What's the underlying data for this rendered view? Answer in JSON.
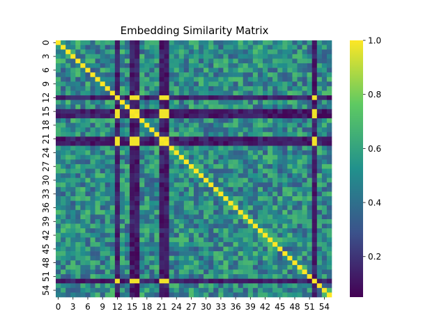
{
  "chart_data": {
    "type": "heatmap",
    "title": "Embedding Similarity Matrix",
    "size": 56,
    "x_tick_labels": [
      "0",
      "3",
      "6",
      "9",
      "12",
      "15",
      "18",
      "21",
      "24",
      "27",
      "30",
      "33",
      "36",
      "39",
      "42",
      "45",
      "48",
      "51",
      "54"
    ],
    "y_tick_labels": [
      "0",
      "3",
      "6",
      "9",
      "12",
      "15",
      "18",
      "21",
      "24",
      "27",
      "30",
      "33",
      "36",
      "39",
      "42",
      "45",
      "48",
      "51",
      "54"
    ],
    "special_indices": [
      12,
      15,
      16,
      21,
      22,
      52
    ],
    "diagonal_value": 1.0,
    "special_cross_value": 0.98,
    "special_band_value_range": [
      0.06,
      0.2
    ],
    "background_value_range": [
      0.3,
      0.72
    ],
    "colorbar": {
      "vmin": 0.05,
      "vmax": 1.0,
      "ticks": [
        0.2,
        0.4,
        0.6,
        0.8,
        1.0
      ],
      "tick_labels": [
        "0.2",
        "0.4",
        "0.6",
        "0.8",
        "1.0"
      ]
    },
    "colormap": "viridis",
    "colormap_stops": [
      "#440154",
      "#3b528b",
      "#21918c",
      "#5ec962",
      "#fde725"
    ]
  }
}
